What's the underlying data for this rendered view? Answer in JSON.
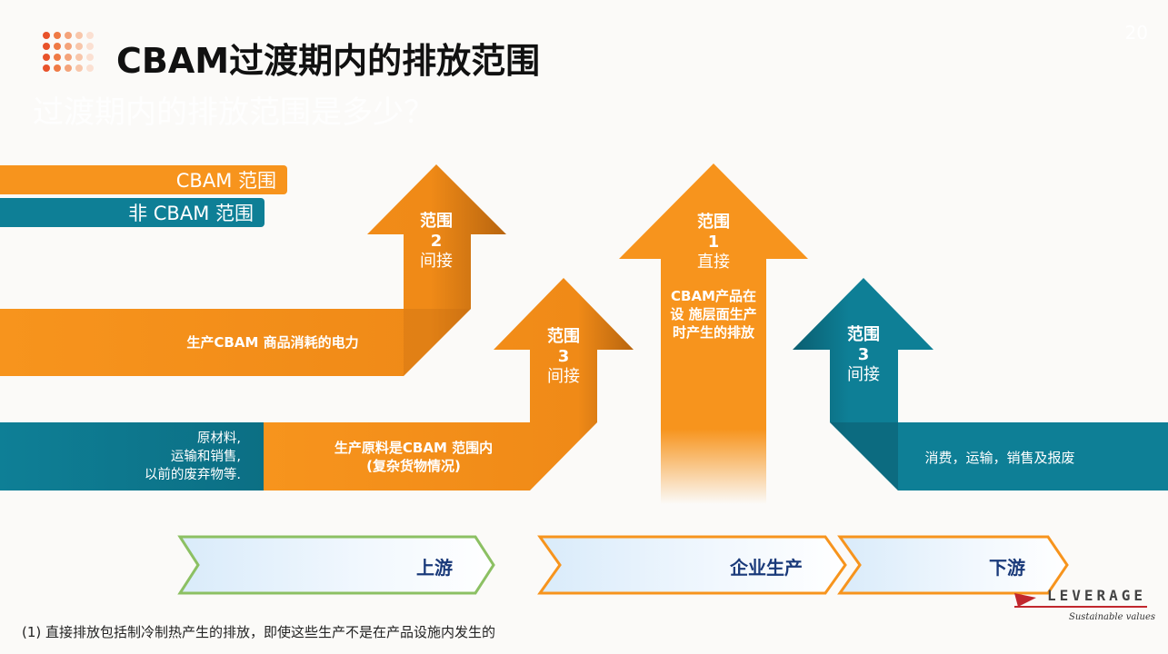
{
  "page": {
    "title": "CBAM过渡期内的排放范围",
    "subtitle": "过渡期内的排放范围是多少？",
    "page_number": "20"
  },
  "legend": {
    "cbam": "CBAM 范围",
    "non_cbam": "非 CBAM 范围"
  },
  "flows": {
    "electricity": "生产CBAM 商品消耗的电力",
    "raw_materials": "原材料,\n运输和销售,\n以前的废弃物等.",
    "precursor": "生产原料是CBAM 范围内\n(复杂货物情况)",
    "direct": "CBAM产品在\n设 施层面生产\n时产生的排放",
    "downstream": "消费，运输，销售及报废"
  },
  "arrows": {
    "scope2": {
      "name": "范围",
      "number": "2",
      "type": "间接"
    },
    "scope1": {
      "name": "范围",
      "number": "1",
      "type": "直接"
    },
    "scope3_up": {
      "name": "范围",
      "number": "3",
      "type": "间接"
    },
    "scope3_down": {
      "name": "范围",
      "number": "3",
      "type": "间接"
    }
  },
  "stages": {
    "upstream": "上游",
    "production": "企业生产",
    "downstream": "下游"
  },
  "footnote": "(1) 直接排放包括制冷制热产生的排放，即使这些生产不是在产品设施内发生的",
  "logo": {
    "name": "LEVERAGE",
    "tagline": "Sustainable values"
  },
  "colors": {
    "cbam": "#f7941d",
    "non_cbam": "#0e7f96",
    "title_dot": "#e8522a",
    "stage_text": "#1a3a7a"
  }
}
